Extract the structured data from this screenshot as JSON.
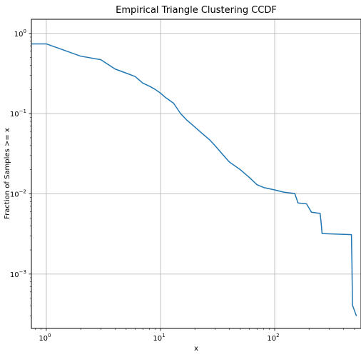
{
  "chart_data": {
    "type": "line",
    "title": "Empirical Triangle Clustering CCDF",
    "xlabel": "x",
    "ylabel": "Fraction of Samples >= x",
    "xscale": "log",
    "yscale": "log",
    "xlim": [
      0.74,
      570
    ],
    "ylim": [
      0.00021,
      1.5
    ],
    "grid": true,
    "line_color": "#1f77b4",
    "x_ticks": [
      {
        "value": 1,
        "base": "10",
        "exp": "0"
      },
      {
        "value": 10,
        "base": "10",
        "exp": "1"
      },
      {
        "value": 100,
        "base": "10",
        "exp": "2"
      }
    ],
    "y_ticks": [
      {
        "value": 0.001,
        "base": "10",
        "exp": "−3"
      },
      {
        "value": 0.01,
        "base": "10",
        "exp": "−2"
      },
      {
        "value": 0.1,
        "base": "10",
        "exp": "−1"
      },
      {
        "value": 1,
        "base": "10",
        "exp": "0"
      }
    ],
    "series": [
      {
        "x": [
          0.74,
          1.0,
          2.0,
          3.0,
          4.0,
          5.0,
          6.0,
          7.0,
          8.0,
          9.0,
          10.0,
          11.0,
          13.0,
          15.0,
          17.0,
          20.0,
          23.0,
          27.0,
          30.0,
          35.0,
          40.0,
          50.0,
          60.0,
          70.0,
          80.0,
          100.0,
          120.0,
          150.0,
          160.0,
          190.0,
          210.0,
          250.0,
          255.0,
          260.0,
          470.0,
          475.0,
          480.0,
          520.0
        ],
        "y": [
          0.74,
          0.74,
          0.52,
          0.47,
          0.36,
          0.32,
          0.29,
          0.24,
          0.22,
          0.2,
          0.18,
          0.16,
          0.135,
          0.1,
          0.083,
          0.068,
          0.057,
          0.047,
          0.04,
          0.031,
          0.025,
          0.02,
          0.016,
          0.013,
          0.012,
          0.0112,
          0.0105,
          0.0101,
          0.0077,
          0.0075,
          0.0059,
          0.0057,
          0.0044,
          0.0032,
          0.0031,
          0.0013,
          0.00041,
          0.0003
        ]
      }
    ]
  }
}
